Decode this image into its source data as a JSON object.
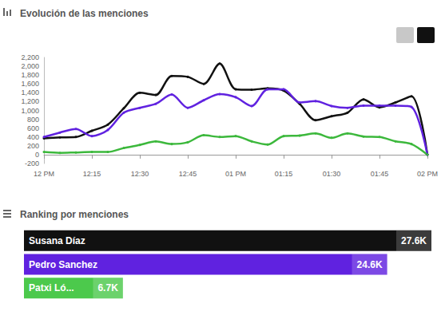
{
  "chart_data": [
    {
      "type": "line",
      "title": "Evolución de las menciones",
      "categories": [
        "12 PM",
        null,
        null,
        "12:15",
        null,
        null,
        "12:30",
        null,
        null,
        "12:45",
        null,
        null,
        "01 PM",
        null,
        null,
        "01:15",
        null,
        null,
        "01:30",
        null,
        null,
        "01:45",
        null,
        null,
        "02 PM"
      ],
      "series": [
        {
          "color": "#111111",
          "values": [
            370,
            390,
            400,
            540,
            680,
            1050,
            1400,
            1350,
            1780,
            1760,
            1600,
            2060,
            1480,
            1470,
            1500,
            1450,
            1150,
            780,
            870,
            950,
            1250,
            1070,
            1180,
            1320,
            0
          ]
        },
        {
          "color": "#6022e0",
          "values": [
            400,
            500,
            580,
            420,
            560,
            950,
            1060,
            1150,
            1360,
            1060,
            1230,
            1370,
            1300,
            1100,
            1480,
            1480,
            1180,
            1210,
            1100,
            1060,
            1110,
            1110,
            1110,
            1080,
            0
          ]
        },
        {
          "color": "#3cb83c",
          "values": [
            60,
            40,
            50,
            60,
            60,
            150,
            220,
            300,
            240,
            280,
            440,
            400,
            420,
            300,
            230,
            420,
            430,
            480,
            380,
            480,
            410,
            400,
            300,
            240,
            0
          ]
        }
      ],
      "ylim": [
        -200,
        2200
      ],
      "yticks": [
        -200,
        0,
        200,
        400,
        600,
        800,
        1000,
        1200,
        1400,
        1600,
        1800,
        2000,
        2200
      ],
      "grid": false
    },
    {
      "type": "bar",
      "title": "Ranking por menciones",
      "orientation": "horizontal",
      "categories": [
        "Susana Díaz",
        "Pedro Sanchez",
        "Patxi Ló..."
      ],
      "values": [
        27600,
        24600,
        6700
      ],
      "value_labels": [
        "27.6K",
        "24.6K",
        "6.7K"
      ],
      "colors": [
        "#111111",
        "#6022e0",
        "#4cc94c"
      ],
      "xlim": [
        0,
        27600
      ],
      "tick_labels": false,
      "data_labels": true,
      "grid": false
    }
  ]
}
